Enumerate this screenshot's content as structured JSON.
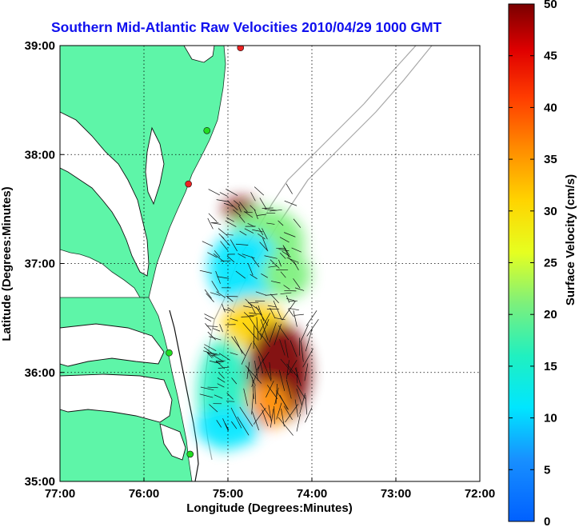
{
  "title": "Southern Mid-Atlantic Raw Velocities 2010/04/29 1000 GMT",
  "xaxis": {
    "label": "Longitude (Degrees:Minutes)",
    "ticks": [
      "77:00",
      "76:00",
      "75:00",
      "74:00",
      "73:00",
      "72:00"
    ]
  },
  "yaxis": {
    "label": "Latitude (Degrees:Minutes)",
    "ticks": [
      "35:00",
      "36:00",
      "37:00",
      "38:00",
      "39:00"
    ]
  },
  "colorbar": {
    "label": "Surface Velocity (cm/s)",
    "ticks": [
      "0",
      "5",
      "10",
      "15",
      "20",
      "25",
      "30",
      "35",
      "40",
      "45",
      "50"
    ],
    "min": 0,
    "max": 50
  },
  "colors": {
    "land": "#5ef5a8",
    "coastline": "#000000",
    "bathymetry": "#a8a8a8",
    "title": "#1010ee",
    "station_green": "#22dd22",
    "station_red": "#ee2222"
  },
  "chart_data": {
    "type": "map",
    "extent": {
      "lon_min": -77.0,
      "lon_max": -72.0,
      "lat_min": 35.0,
      "lat_max": 39.0
    },
    "grid": true,
    "stations": [
      {
        "lon": -74.85,
        "lat": 38.98,
        "status": "red"
      },
      {
        "lon": -75.47,
        "lat": 37.73,
        "status": "red"
      },
      {
        "lon": -75.25,
        "lat": 38.22,
        "status": "green"
      },
      {
        "lon": -75.7,
        "lat": 36.18,
        "status": "green"
      },
      {
        "lon": -75.45,
        "lat": 35.25,
        "status": "green"
      }
    ],
    "velocity_regions": [
      {
        "name": "north-red",
        "speed_cm_s": 47,
        "lon": -74.85,
        "lat": 37.5
      },
      {
        "name": "north-green",
        "speed_cm_s": 20,
        "lon": -74.55,
        "lat": 37.2
      },
      {
        "name": "central-blue",
        "speed_cm_s": 7,
        "lon": -74.8,
        "lat": 36.95
      },
      {
        "name": "east-green",
        "speed_cm_s": 18,
        "lon": -74.3,
        "lat": 36.9
      },
      {
        "name": "mid-yellow",
        "speed_cm_s": 28,
        "lon": -74.7,
        "lat": 36.45
      },
      {
        "name": "south-core-red",
        "speed_cm_s": 48,
        "lon": -74.4,
        "lat": 36.0
      },
      {
        "name": "south-orange",
        "speed_cm_s": 35,
        "lon": -74.55,
        "lat": 35.7
      },
      {
        "name": "southwest-cyan",
        "speed_cm_s": 13,
        "lon": -75.05,
        "lat": 35.8
      },
      {
        "name": "southwest-blue",
        "speed_cm_s": 9,
        "lon": -75.0,
        "lat": 35.5
      }
    ]
  }
}
